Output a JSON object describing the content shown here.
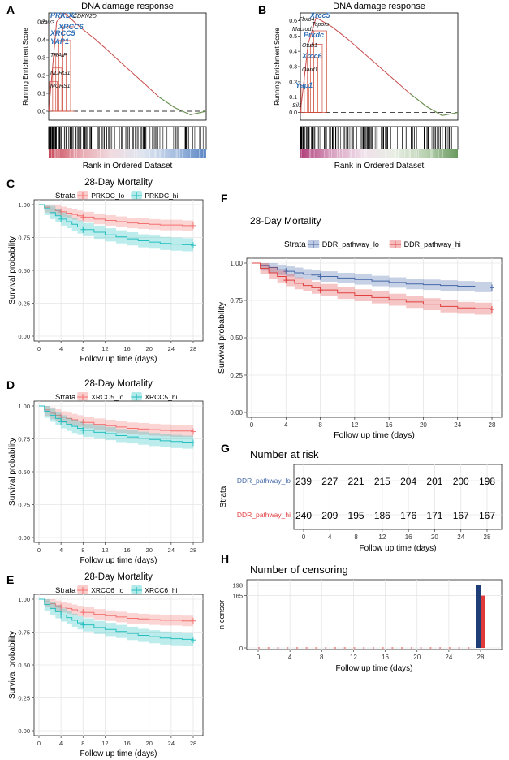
{
  "panels": {
    "A": "A",
    "B": "B",
    "C": "C",
    "D": "D",
    "E": "E",
    "F": "F",
    "G": "G",
    "H": "H"
  },
  "colors": {
    "lo_pink": "#f2716f",
    "hi_teal": "#23bfbf",
    "lo_blue": "#4468a8",
    "hi_red": "#e04040",
    "gsea_line": "#c94b4b",
    "gsea_green": "#5a9a50",
    "gene_blue": "#2f6fb5"
  },
  "gsea": [
    {
      "title": "DNA damage response",
      "ylabel": "Running Enrichment Score",
      "xlabel": "Rank in Ordered Dataset",
      "yticks": [
        "0.0",
        "0.1",
        "0.2",
        "0.3",
        "0.4",
        "0.5"
      ],
      "genes": [
        {
          "name": "PRKDC",
          "highlight": true
        },
        {
          "name": "CDKN2D",
          "highlight": false
        },
        {
          "name": "VAV3",
          "highlight": false
        },
        {
          "name": "XRCC6",
          "highlight": true
        },
        {
          "name": "XRCC5",
          "highlight": true
        },
        {
          "name": "YAP1",
          "highlight": true
        },
        {
          "name": "TRAIP",
          "highlight": false
        },
        {
          "name": "NDRG1",
          "highlight": false
        },
        {
          "name": "MCRS1",
          "highlight": false
        }
      ],
      "rank_colors": [
        "#c94b5b",
        "#e8a8b0",
        "#f0dbe0",
        "#dfe6f0",
        "#a7bee0",
        "#5a86c4"
      ]
    },
    {
      "title": "DNA damage response",
      "ylabel": "Running Enrichment Score",
      "xlabel": "Rank in Ordered Dataset",
      "yticks": [
        "0.0",
        "0.1",
        "0.2",
        "0.3",
        "0.4",
        "0.5",
        "0.6"
      ],
      "genes": [
        {
          "name": "Fbxo4",
          "highlight": false
        },
        {
          "name": "Xrcc5",
          "highlight": true
        },
        {
          "name": "Topors",
          "highlight": false
        },
        {
          "name": "Macrod1",
          "highlight": false
        },
        {
          "name": "Prkdc",
          "highlight": true
        },
        {
          "name": "Otub1",
          "highlight": false
        },
        {
          "name": "Xrcc6",
          "highlight": true
        },
        {
          "name": "Oard1",
          "highlight": false
        },
        {
          "name": "Yap1",
          "highlight": true
        },
        {
          "name": "Sil1",
          "highlight": false
        }
      ],
      "rank_colors": [
        "#b0407a",
        "#d9a0c0",
        "#f0e0ea",
        "#e8eee4",
        "#b8d0b0",
        "#6a9a60"
      ]
    }
  ],
  "km": [
    {
      "title": "28-Day Mortality",
      "strata_label": "Strata",
      "xlabel": "Follow up time (days)",
      "ylabel": "Survival probability",
      "xticks": [
        0,
        4,
        8,
        12,
        16,
        20,
        24,
        28
      ],
      "yticks": [
        "0.00",
        "0.25",
        "0.50",
        "0.75",
        "1.00"
      ],
      "ylim": [
        0,
        1
      ],
      "series": [
        {
          "name": "PRKDC_lo",
          "color": "#f2716f",
          "t": [
            0,
            1,
            2,
            3,
            4,
            5,
            6,
            7,
            8,
            10,
            12,
            14,
            16,
            18,
            20,
            22,
            24,
            26,
            28
          ],
          "s": [
            1,
            0.98,
            0.965,
            0.955,
            0.945,
            0.935,
            0.925,
            0.915,
            0.905,
            0.89,
            0.88,
            0.87,
            0.86,
            0.855,
            0.85,
            0.845,
            0.845,
            0.84,
            0.84
          ],
          "band": 0.04
        },
        {
          "name": "PRKDC_hi",
          "color": "#23bfbf",
          "t": [
            0,
            1,
            2,
            3,
            4,
            5,
            6,
            7,
            8,
            10,
            12,
            14,
            16,
            18,
            20,
            22,
            24,
            26,
            28
          ],
          "s": [
            1,
            0.97,
            0.94,
            0.915,
            0.89,
            0.87,
            0.85,
            0.83,
            0.81,
            0.79,
            0.77,
            0.755,
            0.74,
            0.725,
            0.715,
            0.705,
            0.7,
            0.695,
            0.69
          ],
          "band": 0.05
        }
      ]
    },
    {
      "title": "28-Day Mortality",
      "strata_label": "Strata",
      "xlabel": "Follow up time (days)",
      "ylabel": "Survival probability",
      "xticks": [
        0,
        4,
        8,
        12,
        16,
        20,
        24,
        28
      ],
      "yticks": [
        "0.00",
        "0.25",
        "0.50",
        "0.75",
        "1.00"
      ],
      "ylim": [
        0,
        1
      ],
      "series": [
        {
          "name": "XRCC5_lo",
          "color": "#f2716f",
          "t": [
            0,
            1,
            2,
            3,
            4,
            5,
            6,
            7,
            8,
            10,
            12,
            14,
            16,
            18,
            20,
            22,
            24,
            26,
            28
          ],
          "s": [
            1,
            0.97,
            0.945,
            0.93,
            0.915,
            0.905,
            0.895,
            0.885,
            0.875,
            0.86,
            0.85,
            0.84,
            0.83,
            0.825,
            0.82,
            0.815,
            0.81,
            0.81,
            0.805
          ],
          "band": 0.045
        },
        {
          "name": "XRCC5_hi",
          "color": "#23bfbf",
          "t": [
            0,
            1,
            2,
            3,
            4,
            5,
            6,
            7,
            8,
            10,
            12,
            14,
            16,
            18,
            20,
            22,
            24,
            26,
            28
          ],
          "s": [
            1,
            0.96,
            0.93,
            0.905,
            0.88,
            0.86,
            0.845,
            0.83,
            0.815,
            0.8,
            0.79,
            0.775,
            0.765,
            0.755,
            0.745,
            0.735,
            0.73,
            0.725,
            0.72
          ],
          "band": 0.05
        }
      ]
    },
    {
      "title": "28-Day Mortality",
      "strata_label": "Strata",
      "xlabel": "Follow up time (days)",
      "ylabel": "Survival probability",
      "xticks": [
        0,
        4,
        8,
        12,
        16,
        20,
        24,
        28
      ],
      "yticks": [
        "0.00",
        "0.25",
        "0.50",
        "0.75",
        "1.00"
      ],
      "ylim": [
        0,
        1
      ],
      "series": [
        {
          "name": "XRCC6_lo",
          "color": "#f2716f",
          "t": [
            0,
            1,
            2,
            3,
            4,
            5,
            6,
            7,
            8,
            10,
            12,
            14,
            16,
            18,
            20,
            22,
            24,
            26,
            28
          ],
          "s": [
            1,
            0.98,
            0.965,
            0.95,
            0.94,
            0.93,
            0.92,
            0.91,
            0.9,
            0.885,
            0.875,
            0.865,
            0.855,
            0.85,
            0.845,
            0.84,
            0.84,
            0.835,
            0.835
          ],
          "band": 0.04
        },
        {
          "name": "XRCC6_hi",
          "color": "#23bfbf",
          "t": [
            0,
            1,
            2,
            3,
            4,
            5,
            6,
            7,
            8,
            10,
            12,
            14,
            16,
            18,
            20,
            22,
            24,
            26,
            28
          ],
          "s": [
            1,
            0.96,
            0.93,
            0.905,
            0.88,
            0.86,
            0.84,
            0.82,
            0.805,
            0.785,
            0.77,
            0.755,
            0.74,
            0.725,
            0.715,
            0.705,
            0.7,
            0.695,
            0.69
          ],
          "band": 0.05
        }
      ]
    },
    {
      "title": "28-Day Mortality",
      "strata_label": "Strata",
      "xlabel": "Follow up time (days)",
      "ylabel": "Survival probability",
      "xticks": [
        0,
        4,
        8,
        12,
        16,
        20,
        24,
        28
      ],
      "yticks": [
        "0.00",
        "0.25",
        "0.50",
        "0.75",
        "1.00"
      ],
      "ylim": [
        0,
        1
      ],
      "series": [
        {
          "name": "DDR_pathway_lo",
          "color": "#4468a8",
          "t": [
            0,
            1,
            2,
            3,
            4,
            5,
            6,
            7,
            8,
            10,
            12,
            14,
            16,
            18,
            20,
            22,
            24,
            26,
            28
          ],
          "s": [
            1,
            0.985,
            0.97,
            0.955,
            0.945,
            0.935,
            0.925,
            0.92,
            0.91,
            0.9,
            0.89,
            0.88,
            0.87,
            0.86,
            0.855,
            0.85,
            0.845,
            0.84,
            0.835
          ],
          "band": 0.035
        },
        {
          "name": "DDR_pathway_hi",
          "color": "#e04040",
          "t": [
            0,
            1,
            2,
            3,
            4,
            5,
            6,
            7,
            8,
            10,
            12,
            14,
            16,
            18,
            20,
            22,
            24,
            26,
            28
          ],
          "s": [
            1,
            0.965,
            0.935,
            0.91,
            0.885,
            0.865,
            0.85,
            0.835,
            0.82,
            0.8,
            0.785,
            0.77,
            0.755,
            0.74,
            0.725,
            0.71,
            0.7,
            0.695,
            0.69
          ],
          "band": 0.04
        }
      ]
    }
  ],
  "risk_table": {
    "title": "Number at risk",
    "ylabel": "Strata",
    "xlabel": "Follow up time (days)",
    "xticks": [
      0,
      4,
      8,
      12,
      16,
      20,
      24,
      28
    ],
    "rows": [
      {
        "name": "DDR_pathway_lo",
        "color": "#4468a8",
        "values": [
          239,
          227,
          221,
          215,
          204,
          201,
          200,
          198
        ]
      },
      {
        "name": "DDR_pathway_hi",
        "color": "#e04040",
        "values": [
          240,
          209,
          195,
          186,
          176,
          171,
          167,
          167
        ]
      }
    ]
  },
  "chart_data": [
    {
      "type": "line",
      "title": "DNA damage response",
      "xlabel": "Rank in Ordered Dataset",
      "ylabel": "Running Enrichment Score",
      "ylim": [
        -0.05,
        0.55
      ],
      "x": [
        0,
        0.05,
        0.1,
        0.2,
        0.3,
        0.4,
        0.5,
        0.6,
        0.7,
        0.8,
        0.9,
        1.0
      ],
      "values": [
        0,
        0.5,
        0.55,
        0.47,
        0.4,
        0.32,
        0.24,
        0.16,
        0.08,
        0.02,
        -0.02,
        0
      ]
    },
    {
      "type": "line",
      "title": "DNA damage response",
      "xlabel": "Rank in Ordered Dataset",
      "ylabel": "Running Enrichment Score",
      "ylim": [
        -0.05,
        0.65
      ],
      "x": [
        0,
        0.05,
        0.1,
        0.2,
        0.3,
        0.4,
        0.5,
        0.6,
        0.7,
        0.8,
        0.9,
        1.0
      ],
      "values": [
        0,
        0.45,
        0.62,
        0.56,
        0.48,
        0.39,
        0.3,
        0.21,
        0.12,
        0.04,
        -0.02,
        0
      ]
    },
    {
      "type": "line",
      "title": "28-Day Mortality",
      "xlabel": "Follow up time (days)",
      "ylabel": "Survival probability",
      "categories": [
        0,
        4,
        8,
        12,
        16,
        20,
        24,
        28
      ],
      "series": [
        {
          "name": "PRKDC_lo",
          "values": [
            1,
            0.945,
            0.905,
            0.88,
            0.86,
            0.85,
            0.845,
            0.84
          ]
        },
        {
          "name": "PRKDC_hi",
          "values": [
            1,
            0.89,
            0.81,
            0.77,
            0.74,
            0.715,
            0.7,
            0.69
          ]
        }
      ]
    },
    {
      "type": "line",
      "title": "28-Day Mortality",
      "xlabel": "Follow up time (days)",
      "ylabel": "Survival probability",
      "categories": [
        0,
        4,
        8,
        12,
        16,
        20,
        24,
        28
      ],
      "series": [
        {
          "name": "XRCC5_lo",
          "values": [
            1,
            0.915,
            0.875,
            0.85,
            0.83,
            0.82,
            0.81,
            0.805
          ]
        },
        {
          "name": "XRCC5_hi",
          "values": [
            1,
            0.88,
            0.815,
            0.79,
            0.765,
            0.745,
            0.73,
            0.72
          ]
        }
      ]
    },
    {
      "type": "line",
      "title": "28-Day Mortality",
      "xlabel": "Follow up time (days)",
      "ylabel": "Survival probability",
      "categories": [
        0,
        4,
        8,
        12,
        16,
        20,
        24,
        28
      ],
      "series": [
        {
          "name": "XRCC6_lo",
          "values": [
            1,
            0.94,
            0.9,
            0.875,
            0.855,
            0.845,
            0.84,
            0.835
          ]
        },
        {
          "name": "XRCC6_hi",
          "values": [
            1,
            0.88,
            0.805,
            0.77,
            0.74,
            0.715,
            0.7,
            0.69
          ]
        }
      ]
    },
    {
      "type": "line",
      "title": "28-Day Mortality",
      "xlabel": "Follow up time (days)",
      "ylabel": "Survival probability",
      "categories": [
        0,
        4,
        8,
        12,
        16,
        20,
        24,
        28
      ],
      "series": [
        {
          "name": "DDR_pathway_lo",
          "values": [
            1,
            0.945,
            0.91,
            0.89,
            0.87,
            0.855,
            0.845,
            0.835
          ]
        },
        {
          "name": "DDR_pathway_hi",
          "values": [
            1,
            0.885,
            0.82,
            0.785,
            0.755,
            0.725,
            0.7,
            0.69
          ]
        }
      ]
    },
    {
      "type": "table",
      "title": "Number at risk",
      "categories": [
        0,
        4,
        8,
        12,
        16,
        20,
        24,
        28
      ],
      "series": [
        {
          "name": "DDR_pathway_lo",
          "values": [
            239,
            227,
            221,
            215,
            204,
            201,
            200,
            198
          ]
        },
        {
          "name": "DDR_pathway_hi",
          "values": [
            240,
            209,
            195,
            186,
            176,
            171,
            167,
            167
          ]
        }
      ]
    },
    {
      "type": "bar",
      "title": "Number of censoring",
      "xlabel": "Follow up time (days)",
      "ylabel": "n.censor",
      "categories": [
        28
      ],
      "series": [
        {
          "name": "DDR_pathway_lo",
          "values": [
            198
          ]
        },
        {
          "name": "DDR_pathway_hi",
          "values": [
            165
          ]
        }
      ],
      "yticks": [
        0,
        165,
        198
      ],
      "xticks": [
        0,
        4,
        8,
        12,
        16,
        20,
        24,
        28
      ]
    }
  ],
  "censor": {
    "title": "Number of censoring",
    "ylabel": "n.censor",
    "xlabel": "Follow up time (days)",
    "xticks": [
      0,
      4,
      8,
      12,
      16,
      20,
      24,
      28
    ],
    "yticks": [
      0,
      165,
      198
    ],
    "bars": [
      {
        "name": "DDR_pathway_lo",
        "color": "#1f3e78",
        "t": 28,
        "value": 198
      },
      {
        "name": "DDR_pathway_hi",
        "color": "#e03a3a",
        "t": 28,
        "value": 165
      }
    ]
  }
}
